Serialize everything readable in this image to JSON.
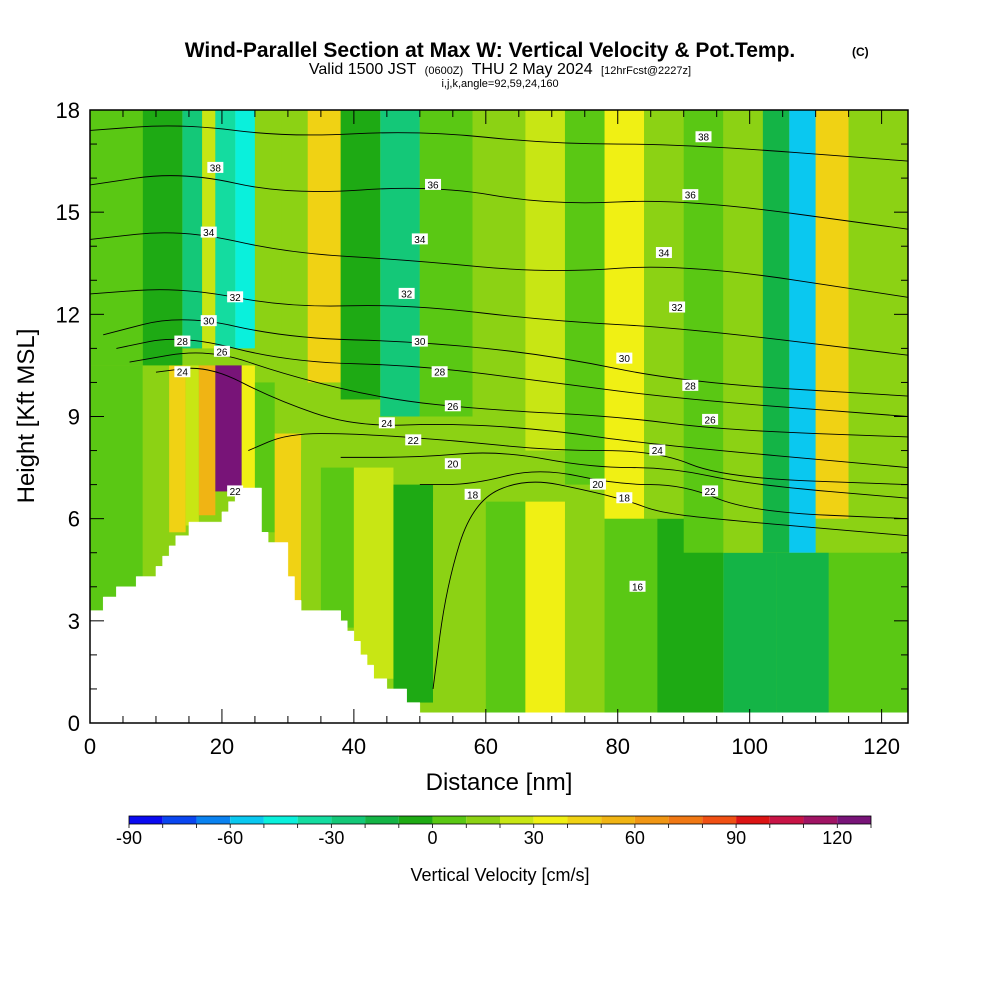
{
  "chart_data": {
    "type": "heatmap",
    "title": {
      "main": "Wind-Parallel Section at Max W: Vertical Velocity & Pot.Temp.",
      "mark": "(C)"
    },
    "subtitle": {
      "valid_prefix": "Valid 1500 JST",
      "utc": "(0600Z)",
      "date": "THU 2 May 2024",
      "forecast": "[12hrFcst@2227z]",
      "indices": "i,j,k,angle=92,59,24,160"
    },
    "xlabel": "Distance [nm]",
    "ylabel": "Height [Kft MSL]",
    "xlim": [
      0,
      124
    ],
    "ylim": [
      0,
      18
    ],
    "x_ticks": [
      0,
      20,
      40,
      60,
      80,
      100,
      120
    ],
    "y_ticks": [
      0,
      3,
      6,
      9,
      12,
      15,
      18
    ],
    "fill_variable": "Vertical Velocity [cm/s]",
    "colorbar": {
      "title": "Vertical Velocity [cm/s]",
      "tick_values": [
        -90,
        -60,
        -30,
        0,
        30,
        60,
        90,
        120
      ],
      "tick_labels": [
        "-90",
        "-60",
        "-30",
        "0",
        "30",
        "60",
        "90",
        "120"
      ],
      "levels": [
        -90,
        -80,
        -70,
        -60,
        -50,
        -40,
        -30,
        -20,
        -10,
        0,
        10,
        20,
        30,
        40,
        50,
        60,
        70,
        80,
        90,
        100,
        110,
        120,
        130
      ],
      "colors": [
        "#0a0af0",
        "#0a46f0",
        "#0a82f0",
        "#0ac8f0",
        "#0af0dc",
        "#14dca0",
        "#14c878",
        "#14b446",
        "#1eaa14",
        "#5ac814",
        "#8cd214",
        "#c8e614",
        "#f0f014",
        "#f0d214",
        "#f0b414",
        "#f09614",
        "#f07814",
        "#f05014",
        "#dc1414",
        "#c81446",
        "#a01464",
        "#781478"
      ]
    },
    "velocity_cells": [
      {
        "x": [
          0,
          8
        ],
        "y": [
          3.3,
          10.5
        ],
        "w": 5
      },
      {
        "x": [
          8,
          12
        ],
        "y": [
          4.2,
          10.5
        ],
        "w": 15
      },
      {
        "x": [
          12,
          14.5
        ],
        "y": [
          5.6,
          10.5
        ],
        "w": 40
      },
      {
        "x": [
          14.5,
          16.5
        ],
        "y": [
          5.8,
          10.5
        ],
        "w": 25
      },
      {
        "x": [
          16.5,
          19
        ],
        "y": [
          6.1,
          10.5
        ],
        "w": 55
      },
      {
        "x": [
          19,
          23
        ],
        "y": [
          6.8,
          10.5
        ],
        "w": 120
      },
      {
        "x": [
          23,
          25
        ],
        "y": [
          6.8,
          10.5
        ],
        "w": 30
      },
      {
        "x": [
          25,
          28
        ],
        "y": [
          5.6,
          10
        ],
        "w": 5
      },
      {
        "x": [
          28,
          32
        ],
        "y": [
          3.3,
          8.5
        ],
        "w": 45
      },
      {
        "x": [
          32,
          35
        ],
        "y": [
          3.3,
          8
        ],
        "w": 15
      },
      {
        "x": [
          35,
          40
        ],
        "y": [
          2.8,
          7.5
        ],
        "w": 5
      },
      {
        "x": [
          40,
          46
        ],
        "y": [
          1.3,
          7.5
        ],
        "w": 25
      },
      {
        "x": [
          46,
          52
        ],
        "y": [
          0.6,
          7
        ],
        "w": -5
      },
      {
        "x": [
          52,
          60
        ],
        "y": [
          0.3,
          6.5
        ],
        "w": 10
      },
      {
        "x": [
          60,
          66
        ],
        "y": [
          0.3,
          6.5
        ],
        "w": 0
      },
      {
        "x": [
          66,
          72
        ],
        "y": [
          0.3,
          6.5
        ],
        "w": 35
      },
      {
        "x": [
          72,
          78
        ],
        "y": [
          0.3,
          6
        ],
        "w": 10
      },
      {
        "x": [
          78,
          86
        ],
        "y": [
          0.3,
          6
        ],
        "w": 5
      },
      {
        "x": [
          86,
          96
        ],
        "y": [
          0.3,
          6
        ],
        "w": -10
      },
      {
        "x": [
          96,
          104
        ],
        "y": [
          0.3,
          5
        ],
        "w": -20
      },
      {
        "x": [
          104,
          112
        ],
        "y": [
          0.3,
          5
        ],
        "w": -15
      },
      {
        "x": [
          112,
          124
        ],
        "y": [
          0.3,
          5
        ],
        "w": 5
      },
      {
        "x": [
          0,
          8
        ],
        "y": [
          10.5,
          18
        ],
        "w": 0
      },
      {
        "x": [
          8,
          14
        ],
        "y": [
          10.5,
          18
        ],
        "w": -5
      },
      {
        "x": [
          14,
          17
        ],
        "y": [
          11,
          18
        ],
        "w": -25
      },
      {
        "x": [
          17,
          19
        ],
        "y": [
          11,
          18
        ],
        "w": 25
      },
      {
        "x": [
          19,
          22
        ],
        "y": [
          11,
          18
        ],
        "w": -35
      },
      {
        "x": [
          22,
          25
        ],
        "y": [
          11,
          18
        ],
        "w": -50
      },
      {
        "x": [
          25,
          29
        ],
        "y": [
          10.5,
          18
        ],
        "w": 15
      },
      {
        "x": [
          29,
          33
        ],
        "y": [
          10,
          18
        ],
        "w": 10
      },
      {
        "x": [
          33,
          38
        ],
        "y": [
          10,
          18
        ],
        "w": 45
      },
      {
        "x": [
          38,
          44
        ],
        "y": [
          9.5,
          18
        ],
        "w": -5
      },
      {
        "x": [
          44,
          50
        ],
        "y": [
          9,
          18
        ],
        "w": -30
      },
      {
        "x": [
          50,
          58
        ],
        "y": [
          9,
          18
        ],
        "w": 5
      },
      {
        "x": [
          58,
          66
        ],
        "y": [
          8,
          18
        ],
        "w": 10
      },
      {
        "x": [
          66,
          72
        ],
        "y": [
          8,
          18
        ],
        "w": 25
      },
      {
        "x": [
          72,
          78
        ],
        "y": [
          7,
          18
        ],
        "w": 5
      },
      {
        "x": [
          78,
          84
        ],
        "y": [
          6,
          18
        ],
        "w": 35
      },
      {
        "x": [
          84,
          90
        ],
        "y": [
          6,
          18
        ],
        "w": 15
      },
      {
        "x": [
          90,
          96
        ],
        "y": [
          5,
          18
        ],
        "w": 5
      },
      {
        "x": [
          96,
          102
        ],
        "y": [
          5,
          18
        ],
        "w": 15
      },
      {
        "x": [
          102,
          106
        ],
        "y": [
          5,
          18
        ],
        "w": -20
      },
      {
        "x": [
          106,
          110
        ],
        "y": [
          5,
          18
        ],
        "w": -60
      },
      {
        "x": [
          110,
          115
        ],
        "y": [
          6,
          18
        ],
        "w": 40
      },
      {
        "x": [
          115,
          124
        ],
        "y": [
          6,
          18
        ],
        "w": 15
      }
    ],
    "terrain": [
      [
        0,
        3.3
      ],
      [
        2,
        3.3
      ],
      [
        2,
        3.7
      ],
      [
        4,
        3.7
      ],
      [
        4,
        4.0
      ],
      [
        7,
        4.0
      ],
      [
        7,
        4.3
      ],
      [
        10,
        4.3
      ],
      [
        10,
        4.6
      ],
      [
        11,
        4.6
      ],
      [
        11,
        4.9
      ],
      [
        12,
        4.9
      ],
      [
        12,
        5.2
      ],
      [
        13,
        5.2
      ],
      [
        13,
        5.5
      ],
      [
        15,
        5.5
      ],
      [
        15,
        5.9
      ],
      [
        20,
        5.9
      ],
      [
        20,
        6.2
      ],
      [
        21,
        6.2
      ],
      [
        21,
        6.5
      ],
      [
        22,
        6.5
      ],
      [
        22,
        6.9
      ],
      [
        26,
        6.9
      ],
      [
        26,
        5.6
      ],
      [
        27,
        5.6
      ],
      [
        27,
        5.3
      ],
      [
        30,
        5.3
      ],
      [
        30,
        4.3
      ],
      [
        31,
        4.3
      ],
      [
        31,
        3.6
      ],
      [
        32,
        3.6
      ],
      [
        32,
        3.3
      ],
      [
        38,
        3.3
      ],
      [
        38,
        3.0
      ],
      [
        39,
        3.0
      ],
      [
        39,
        2.7
      ],
      [
        40,
        2.7
      ],
      [
        40,
        2.4
      ],
      [
        41,
        2.4
      ],
      [
        41,
        2.0
      ],
      [
        42,
        2.0
      ],
      [
        42,
        1.7
      ],
      [
        43,
        1.7
      ],
      [
        43,
        1.3
      ],
      [
        45,
        1.3
      ],
      [
        45,
        1.0
      ],
      [
        48,
        1.0
      ],
      [
        48,
        0.6
      ],
      [
        50,
        0.6
      ],
      [
        50,
        0.3
      ],
      [
        52,
        0.3
      ],
      [
        52,
        0.3
      ],
      [
        124,
        0.3
      ]
    ],
    "theta_contours": [
      {
        "value": 16,
        "points": [
          [
            52,
            1
          ],
          [
            54,
            4
          ],
          [
            58,
            6.5
          ],
          [
            66,
            7.2
          ],
          [
            76,
            6.8
          ],
          [
            82,
            6.5
          ],
          [
            86,
            6.2
          ],
          [
            94,
            6
          ],
          [
            124,
            5.5
          ]
        ]
      },
      {
        "value": 18,
        "points": [
          [
            50,
            7
          ],
          [
            58,
            7
          ],
          [
            68,
            7.5
          ],
          [
            80,
            7
          ],
          [
            90,
            7
          ],
          [
            100,
            6.2
          ],
          [
            124,
            6
          ]
        ]
      },
      {
        "value": 20,
        "points": [
          [
            38,
            7.8
          ],
          [
            50,
            7.8
          ],
          [
            62,
            8
          ],
          [
            76,
            7.5
          ],
          [
            88,
            7.5
          ],
          [
            100,
            7
          ],
          [
            124,
            6.6
          ]
        ]
      },
      {
        "value": 22,
        "points": [
          [
            24,
            8
          ],
          [
            30,
            8.5
          ],
          [
            40,
            8.5
          ],
          [
            55,
            8.3
          ],
          [
            70,
            8
          ],
          [
            86,
            8
          ],
          [
            96,
            7.2
          ],
          [
            124,
            7
          ]
        ]
      },
      {
        "value": 24,
        "points": [
          [
            10,
            10.3
          ],
          [
            18,
            10.5
          ],
          [
            28,
            9.5
          ],
          [
            40,
            8.7
          ],
          [
            55,
            8.8
          ],
          [
            70,
            8.6
          ],
          [
            84,
            8.2
          ],
          [
            124,
            7.5
          ]
        ]
      },
      {
        "value": 26,
        "points": [
          [
            6,
            10.6
          ],
          [
            18,
            11
          ],
          [
            30,
            10.2
          ],
          [
            45,
            9.5
          ],
          [
            60,
            9.2
          ],
          [
            80,
            9
          ],
          [
            96,
            8.6
          ],
          [
            124,
            8.4
          ]
        ]
      },
      {
        "value": 28,
        "points": [
          [
            4,
            11
          ],
          [
            14,
            11.4
          ],
          [
            30,
            10.6
          ],
          [
            50,
            10.5
          ],
          [
            70,
            10
          ],
          [
            90,
            9.5
          ],
          [
            124,
            9
          ]
        ]
      },
      {
        "value": 30,
        "points": [
          [
            2,
            11.4
          ],
          [
            14,
            12
          ],
          [
            30,
            11.3
          ],
          [
            50,
            11.2
          ],
          [
            70,
            10.8
          ],
          [
            90,
            10
          ],
          [
            124,
            9.6
          ]
        ]
      },
      {
        "value": 32,
        "points": [
          [
            0,
            12.6
          ],
          [
            14,
            12.8
          ],
          [
            30,
            12.2
          ],
          [
            48,
            12.3
          ],
          [
            70,
            11.8
          ],
          [
            90,
            11.6
          ],
          [
            124,
            10.8
          ]
        ]
      },
      {
        "value": 34,
        "points": [
          [
            0,
            14.2
          ],
          [
            14,
            14.5
          ],
          [
            30,
            13.8
          ],
          [
            48,
            13.6
          ],
          [
            70,
            13.2
          ],
          [
            90,
            13.5
          ],
          [
            124,
            12.5
          ]
        ]
      },
      {
        "value": 36,
        "points": [
          [
            0,
            15.8
          ],
          [
            14,
            16.2
          ],
          [
            30,
            15.5
          ],
          [
            52,
            15.8
          ],
          [
            70,
            15.2
          ],
          [
            90,
            15.4
          ],
          [
            124,
            14.5
          ]
        ]
      },
      {
        "value": 38,
        "points": [
          [
            0,
            17.4
          ],
          [
            14,
            17.6
          ],
          [
            30,
            17.2
          ],
          [
            50,
            17.4
          ],
          [
            70,
            17.0
          ],
          [
            90,
            17.0
          ],
          [
            124,
            16.5
          ]
        ]
      }
    ],
    "contour_labels": [
      {
        "text": "38",
        "x": 19,
        "y": 16.3
      },
      {
        "text": "36",
        "x": 52,
        "y": 15.8
      },
      {
        "text": "38",
        "x": 93,
        "y": 17.2
      },
      {
        "text": "36",
        "x": 91,
        "y": 15.5
      },
      {
        "text": "34",
        "x": 18,
        "y": 14.4
      },
      {
        "text": "34",
        "x": 50,
        "y": 14.2
      },
      {
        "text": "34",
        "x": 87,
        "y": 13.8
      },
      {
        "text": "32",
        "x": 22,
        "y": 12.5
      },
      {
        "text": "32",
        "x": 48,
        "y": 12.6
      },
      {
        "text": "32",
        "x": 89,
        "y": 12.2
      },
      {
        "text": "30",
        "x": 18,
        "y": 11.8
      },
      {
        "text": "30",
        "x": 50,
        "y": 11.2
      },
      {
        "text": "30",
        "x": 81,
        "y": 10.7
      },
      {
        "text": "28",
        "x": 14,
        "y": 11.2
      },
      {
        "text": "28",
        "x": 53,
        "y": 10.3
      },
      {
        "text": "28",
        "x": 91,
        "y": 9.9
      },
      {
        "text": "26",
        "x": 20,
        "y": 10.9
      },
      {
        "text": "26",
        "x": 55,
        "y": 9.3
      },
      {
        "text": "26",
        "x": 94,
        "y": 8.9
      },
      {
        "text": "24",
        "x": 14,
        "y": 10.3
      },
      {
        "text": "24",
        "x": 45,
        "y": 8.8
      },
      {
        "text": "24",
        "x": 86,
        "y": 8.0
      },
      {
        "text": "22",
        "x": 49,
        "y": 8.3
      },
      {
        "text": "22",
        "x": 94,
        "y": 6.8
      },
      {
        "text": "22",
        "x": 22,
        "y": 6.8
      },
      {
        "text": "20",
        "x": 55,
        "y": 7.6
      },
      {
        "text": "20",
        "x": 77,
        "y": 7.0
      },
      {
        "text": "18",
        "x": 58,
        "y": 6.7
      },
      {
        "text": "18",
        "x": 81,
        "y": 6.6
      },
      {
        "text": "16",
        "x": 83,
        "y": 4.0
      }
    ]
  }
}
